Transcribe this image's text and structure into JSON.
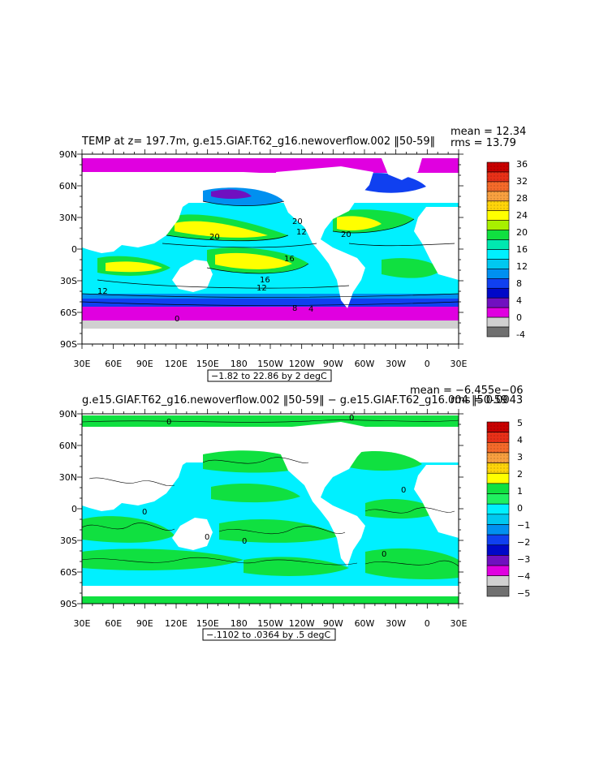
{
  "chart_data": [
    {
      "type": "heatmap",
      "title": "TEMP at z=  197.7m, g.e15.GIAF.T62_g16.newoverflow.002 ‖50-59‖",
      "stats": {
        "mean": "mean = 12.34",
        "rms": "rms = 13.79"
      },
      "contour_note": "−1.82 to 22.86 by 2 degC",
      "x_ticks": [
        "30E",
        "60E",
        "90E",
        "120E",
        "150E",
        "180",
        "150W",
        "120W",
        "90W",
        "60W",
        "30W",
        "0",
        "30E"
      ],
      "y_ticks": [
        "90N",
        "60N",
        "30N",
        "0",
        "30S",
        "60S",
        "90S"
      ],
      "xlim": [
        30,
        390
      ],
      "ylim": [
        -90,
        90
      ],
      "colorbar": {
        "labels": [
          "36",
          "32",
          "28",
          "24",
          "20",
          "16",
          "12",
          "8",
          "4",
          "0",
          "-4"
        ],
        "colors": [
          "#c80000",
          "#e83018",
          "#f56a2a",
          "#f8a040",
          "#ffd40a",
          "#ffff00",
          "#a8f000",
          "#10e040",
          "#00e8b0",
          "#00f0ff",
          "#00c8f0",
          "#0090f0",
          "#1040f0",
          "#0008c8",
          "#7010c0",
          "#e000e0",
          "#d0d0d0",
          "#707070"
        ]
      },
      "contour_labels": [
        "20",
        "12",
        "16",
        "16",
        "12",
        "12",
        "20",
        "8",
        "4",
        "0",
        "20"
      ]
    },
    {
      "type": "heatmap",
      "title": "g.e15.GIAF.T62_g16.newoverflow.002 ‖50-59‖ − g.e15.GIAF.T62_g16.004 ‖50-59",
      "stats": {
        "mean": "mean = −6.455e−06",
        "rms": "rms = 0.0043"
      },
      "contour_note": "−.1102 to .0364 by .5 degC",
      "x_ticks": [
        "30E",
        "60E",
        "90E",
        "120E",
        "150E",
        "180",
        "150W",
        "120W",
        "90W",
        "60W",
        "30W",
        "0",
        "30E"
      ],
      "y_ticks": [
        "90N",
        "60N",
        "30N",
        "0",
        "30S",
        "60S",
        "90S"
      ],
      "xlim": [
        30,
        390
      ],
      "ylim": [
        -90,
        90
      ],
      "colorbar": {
        "labels": [
          "5",
          "4",
          "3",
          "2",
          "1",
          "0",
          "−1",
          "−2",
          "−3",
          "−4",
          "−5"
        ],
        "colors": [
          "#c80000",
          "#e83018",
          "#f56a2a",
          "#f8a040",
          "#ffd40a",
          "#ffff00",
          "#10e040",
          "#20f060",
          "#00f0ff",
          "#00c8f0",
          "#0090f0",
          "#1040f0",
          "#0008c8",
          "#7010c0",
          "#e000e0",
          "#d0d0d0",
          "#707070"
        ]
      },
      "contour_labels": [
        "0",
        "0",
        "0",
        "0",
        "0",
        "0",
        "0"
      ]
    }
  ]
}
